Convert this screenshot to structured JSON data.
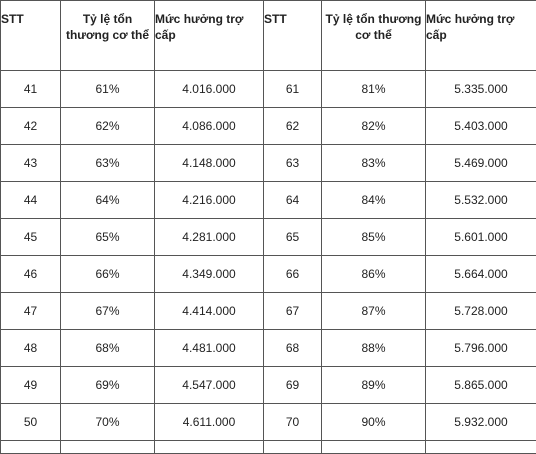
{
  "headers": {
    "stt": "STT",
    "rate": "Tỷ lệ tổn thương cơ thể",
    "amount": "Mức hưởng trợ cấp"
  },
  "rows": [
    {
      "stt_left": "41",
      "rate_left": "61%",
      "amount_left": "4.016.000",
      "stt_right": "61",
      "rate_right": "81%",
      "amount_right": "5.335.000"
    },
    {
      "stt_left": "42",
      "rate_left": "62%",
      "amount_left": "4.086.000",
      "stt_right": "62",
      "rate_right": "82%",
      "amount_right": "5.403.000"
    },
    {
      "stt_left": "43",
      "rate_left": "63%",
      "amount_left": "4.148.000",
      "stt_right": "63",
      "rate_right": "83%",
      "amount_right": "5.469.000"
    },
    {
      "stt_left": "44",
      "rate_left": "64%",
      "amount_left": "4.216.000",
      "stt_right": "64",
      "rate_right": "84%",
      "amount_right": "5.532.000"
    },
    {
      "stt_left": "45",
      "rate_left": "65%",
      "amount_left": "4.281.000",
      "stt_right": "65",
      "rate_right": "85%",
      "amount_right": "5.601.000"
    },
    {
      "stt_left": "46",
      "rate_left": "66%",
      "amount_left": "4.349.000",
      "stt_right": "66",
      "rate_right": "86%",
      "amount_right": "5.664.000"
    },
    {
      "stt_left": "47",
      "rate_left": "67%",
      "amount_left": "4.414.000",
      "stt_right": "67",
      "rate_right": "87%",
      "amount_right": "5.728.000"
    },
    {
      "stt_left": "48",
      "rate_left": "68%",
      "amount_left": "4.481.000",
      "stt_right": "68",
      "rate_right": "88%",
      "amount_right": "5.796.000"
    },
    {
      "stt_left": "49",
      "rate_left": "69%",
      "amount_left": "4.547.000",
      "stt_right": "69",
      "rate_right": "89%",
      "amount_right": "5.865.000"
    },
    {
      "stt_left": "50",
      "rate_left": "70%",
      "amount_left": "4.611.000",
      "stt_right": "70",
      "rate_right": "90%",
      "amount_right": "5.932.000"
    }
  ]
}
